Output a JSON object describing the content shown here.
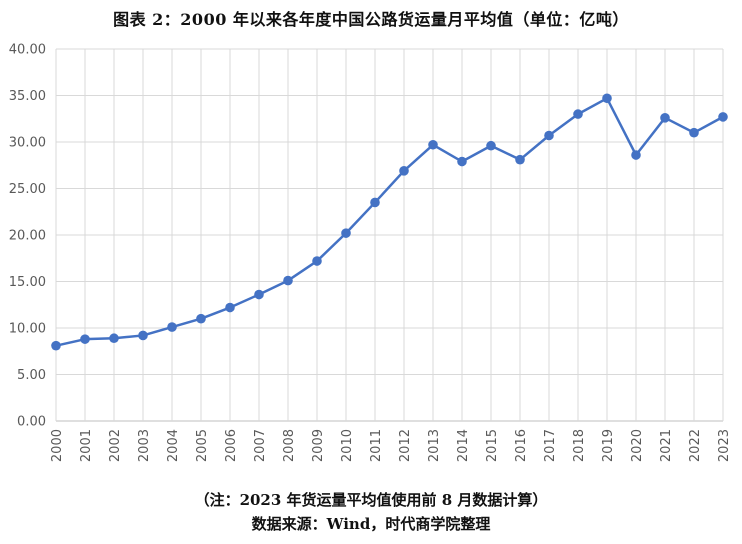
{
  "title": "图表 2：2000 年以来各年度中国公路货运量月平均值（单位：亿吨）",
  "notes": {
    "line1": "（注：2023 年货运量平均值使用前 8 月数据计算）",
    "line2": "数据来源：Wind，时代商学院整理"
  },
  "colors": {
    "series": "#4472C4",
    "grid": "#D9D9D9",
    "axis": "#BFBFBF",
    "tick": "#595959"
  },
  "chart_data": {
    "type": "line",
    "title": "图表 2：2000 年以来各年度中国公路货运量月平均值（单位：亿吨）",
    "xlabel": "",
    "ylabel": "",
    "ylim": [
      0,
      40
    ],
    "yticks": [
      "0.00",
      "5.00",
      "10.00",
      "15.00",
      "20.00",
      "25.00",
      "30.00",
      "35.00",
      "40.00"
    ],
    "grid": true,
    "legend": "none",
    "categories": [
      "2000",
      "2001",
      "2002",
      "2003",
      "2004",
      "2005",
      "2006",
      "2007",
      "2008",
      "2009",
      "2010",
      "2011",
      "2012",
      "2013",
      "2014",
      "2015",
      "2016",
      "2017",
      "2018",
      "2019",
      "2020",
      "2021",
      "2022",
      "2023"
    ],
    "series": [
      {
        "values": [
          8.1,
          8.8,
          8.9,
          9.2,
          10.1,
          11.0,
          12.2,
          13.6,
          15.1,
          17.2,
          20.2,
          23.5,
          26.9,
          29.7,
          27.9,
          29.6,
          28.1,
          30.7,
          33.0,
          34.7,
          28.6,
          32.6,
          31.0,
          32.7
        ]
      }
    ]
  }
}
